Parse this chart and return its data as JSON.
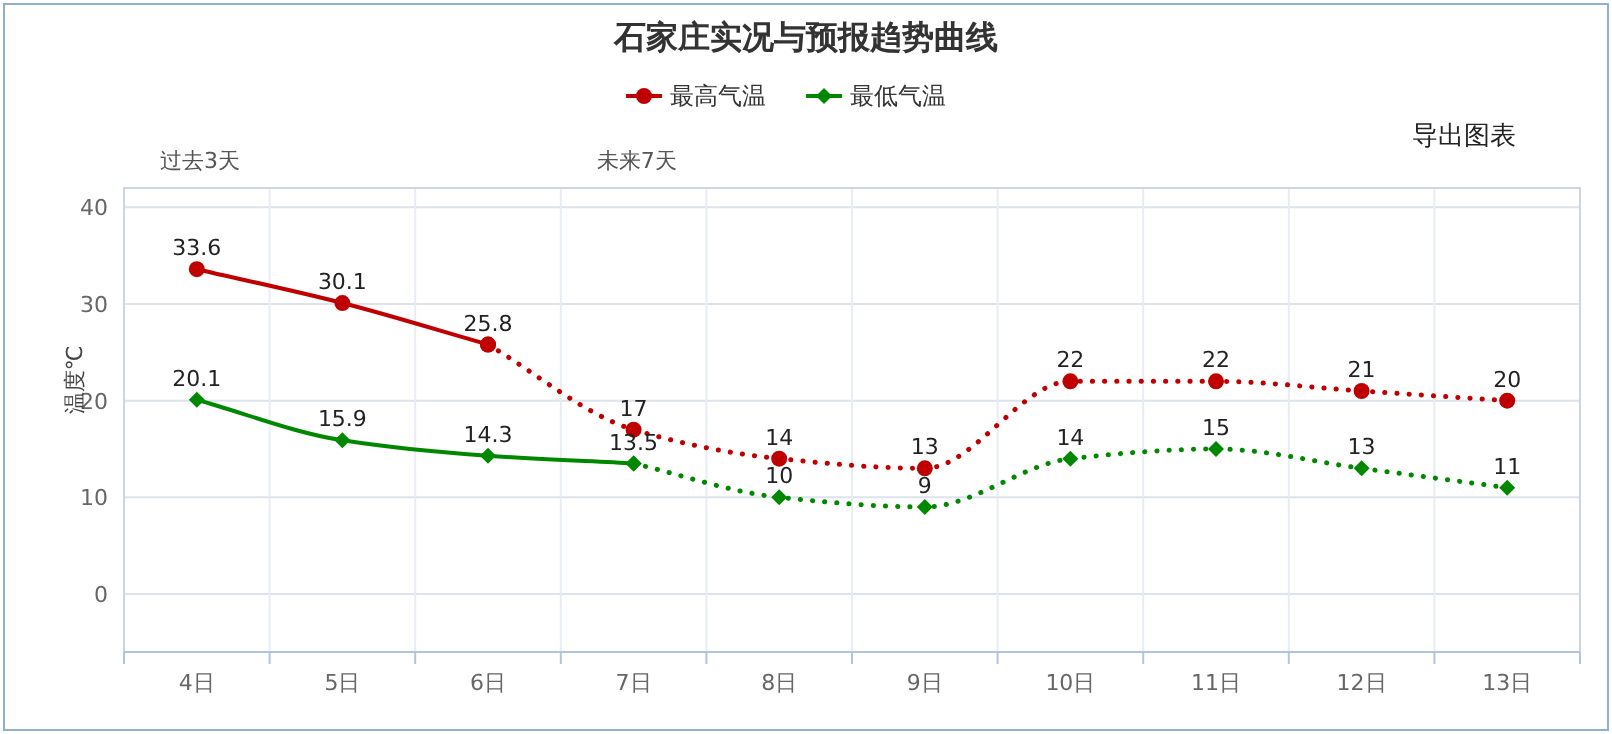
{
  "chart_data": {
    "type": "line",
    "title": "石家庄实况与预报趋势曲线",
    "ylabel": "温度℃",
    "categories": [
      "4日",
      "5日",
      "6日",
      "7日",
      "8日",
      "9日",
      "10日",
      "11日",
      "12日",
      "13日"
    ],
    "ylim": [
      -6,
      42
    ],
    "yticks": [
      0,
      10,
      20,
      30,
      40
    ],
    "grid": true,
    "legend": "top",
    "annotations": [
      "过去3天",
      "未来7天",
      "导出图表"
    ],
    "series": [
      {
        "name": "最高气温",
        "color": "#c00000",
        "marker": "circle",
        "line_style": "solid",
        "values": [
          33.6,
          30.1,
          25.8,
          null,
          null,
          null,
          null,
          null,
          null,
          null
        ],
        "value_labels": [
          "33.6",
          "30.1",
          "25.8",
          null,
          null,
          null,
          null,
          null,
          null,
          null
        ]
      },
      {
        "color": "#c00000",
        "marker": "circle",
        "line_style": "dotted",
        "values": [
          null,
          null,
          25.8,
          17,
          14,
          13,
          22,
          22,
          21,
          20
        ],
        "value_labels": [
          null,
          null,
          null,
          "17",
          "14",
          "13",
          "22",
          "22",
          "21",
          "20"
        ]
      },
      {
        "name": "最低气温",
        "color": "#008800",
        "marker": "diamond",
        "line_style": "solid",
        "values": [
          20.1,
          15.9,
          14.3,
          13.5,
          null,
          null,
          null,
          null,
          null,
          null
        ],
        "value_labels": [
          "20.1",
          "15.9",
          "14.3",
          "13.5",
          null,
          null,
          null,
          null,
          null,
          null
        ]
      },
      {
        "color": "#008800",
        "marker": "diamond",
        "line_style": "dotted",
        "values": [
          null,
          null,
          null,
          13.5,
          10,
          9,
          14,
          15,
          13,
          11
        ],
        "value_labels": [
          null,
          null,
          null,
          null,
          "10",
          "9",
          "14",
          "15",
          "13",
          "11"
        ]
      }
    ]
  }
}
